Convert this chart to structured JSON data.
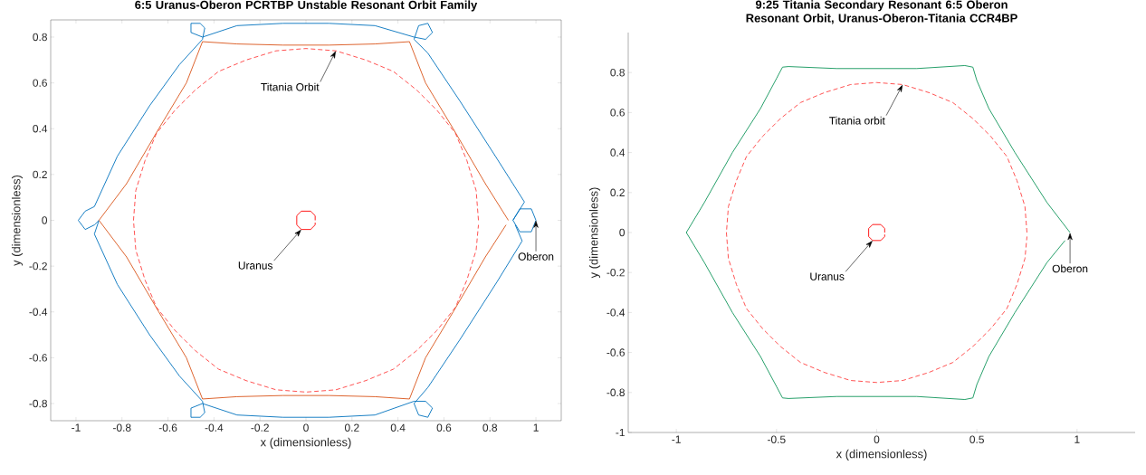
{
  "chart_data": [
    {
      "type": "line",
      "title": "6:5 Uranus-Oberon PCRTBP Unstable Resonant Orbit Family",
      "xlabel": "x (dimensionless)",
      "ylabel": "y (dimensionless)",
      "xlim": [
        -1.11,
        1.11
      ],
      "ylim": [
        -0.875,
        0.875
      ],
      "xticks": [
        -1,
        -0.8,
        -0.6,
        -0.4,
        -0.2,
        0,
        0.2,
        0.4,
        0.6,
        0.8,
        1
      ],
      "yticks": [
        -0.8,
        -0.6,
        -0.4,
        -0.2,
        0,
        0.2,
        0.4,
        0.6,
        0.8
      ],
      "series": [
        {
          "color": "#0072bd",
          "x": [
            0.9,
            0.93,
            0.98,
            1.0,
            0.98,
            0.93,
            0.9,
            0.95,
            0.83,
            0.67,
            0.53,
            0.47,
            0.49,
            0.53,
            0.55,
            0.52,
            0.47,
            0.3,
            0.1,
            -0.1,
            -0.3,
            -0.45,
            -0.5,
            -0.5,
            -0.46,
            -0.44,
            -0.45,
            -0.55,
            -0.68,
            -0.82,
            -0.92,
            -0.96,
            -0.99,
            -0.96,
            -0.92,
            -0.9,
            -0.92,
            -0.82,
            -0.68,
            -0.55,
            -0.45,
            -0.44,
            -0.46,
            -0.5,
            -0.5,
            -0.45,
            -0.3,
            -0.1,
            0.1,
            0.3,
            0.47,
            0.52,
            0.55,
            0.53,
            0.49,
            0.47,
            0.53,
            0.67,
            0.83,
            0.94,
            0.91
          ],
          "values": [
            0,
            0.05,
            0.05,
            0,
            -0.05,
            -0.05,
            0,
            0.08,
            0.27,
            0.52,
            0.73,
            0.79,
            0.85,
            0.86,
            0.82,
            0.79,
            0.8,
            0.85,
            0.86,
            0.86,
            0.85,
            0.8,
            0.82,
            0.86,
            0.86,
            0.84,
            0.79,
            0.68,
            0.5,
            0.28,
            0.06,
            0.04,
            0,
            -0.04,
            -0.02,
            0,
            -0.06,
            -0.28,
            -0.5,
            -0.68,
            -0.79,
            -0.84,
            -0.86,
            -0.86,
            -0.82,
            -0.8,
            -0.85,
            -0.86,
            -0.86,
            -0.85,
            -0.79,
            -0.79,
            -0.82,
            -0.86,
            -0.85,
            -0.8,
            -0.73,
            -0.52,
            -0.27,
            -0.09,
            -0.02
          ]
        },
        {
          "color": "#d95319",
          "x": [
            0.88,
            0.78,
            0.64,
            0.52,
            0.45,
            0.3,
            0.1,
            -0.1,
            -0.3,
            -0.45,
            -0.52,
            -0.64,
            -0.78,
            -0.9,
            -0.78,
            -0.64,
            -0.52,
            -0.45,
            -0.3,
            -0.1,
            0.1,
            0.3,
            0.45,
            0.52,
            0.64,
            0.78,
            0.87
          ],
          "values": [
            0,
            0.16,
            0.4,
            0.6,
            0.78,
            0.77,
            0.765,
            0.765,
            0.77,
            0.78,
            0.6,
            0.4,
            0.16,
            0,
            -0.16,
            -0.4,
            -0.6,
            -0.78,
            -0.77,
            -0.765,
            -0.765,
            -0.77,
            -0.78,
            -0.6,
            -0.4,
            -0.16,
            -0.02
          ]
        },
        {
          "color": "#ff4040",
          "line_style": "dashed",
          "x": [
            0.75,
            0.74,
            0.7,
            0.65,
            0.57,
            0.48,
            0.38,
            0.26,
            0.13,
            0,
            -0.13,
            -0.26,
            -0.38,
            -0.48,
            -0.57,
            -0.65,
            -0.7,
            -0.74,
            -0.75,
            -0.74,
            -0.7,
            -0.65,
            -0.57,
            -0.48,
            -0.38,
            -0.26,
            -0.13,
            0,
            0.13,
            0.26,
            0.38,
            0.48,
            0.57,
            0.65,
            0.7,
            0.74,
            0.75
          ],
          "values": [
            0,
            0.13,
            0.26,
            0.38,
            0.48,
            0.57,
            0.65,
            0.7,
            0.74,
            0.75,
            0.74,
            0.7,
            0.65,
            0.57,
            0.48,
            0.38,
            0.26,
            0.13,
            0,
            -0.13,
            -0.26,
            -0.38,
            -0.48,
            -0.57,
            -0.65,
            -0.7,
            -0.74,
            -0.75,
            -0.74,
            -0.7,
            -0.65,
            -0.57,
            -0.48,
            -0.38,
            -0.26,
            -0.13,
            -0.02
          ]
        },
        {
          "color": "#ff0000",
          "x": [
            0.04,
            0.04,
            0.02,
            0,
            -0.02,
            -0.04,
            -0.04,
            -0.04,
            -0.02,
            0,
            0.02,
            0.04,
            0.04
          ],
          "values": [
            0,
            0.02,
            0.04,
            0.04,
            0.04,
            0.02,
            0,
            -0.02,
            -0.04,
            -0.04,
            -0.04,
            -0.02,
            -0.01
          ]
        }
      ],
      "annotations": [
        {
          "text": "Titania Orbit",
          "x": 0.13,
          "y": 0.74
        },
        {
          "text": "Uranus",
          "x": -0.02,
          "y": -0.04
        },
        {
          "text": "Oberon",
          "x": 1.0,
          "y": 0
        }
      ]
    },
    {
      "type": "line",
      "title": "9:25 Titania Secondary Resonant 6:5 Oberon Resonant Orbit, Uranus-Oberon-Titania CCR4BP",
      "xlabel": "x (dimensionless)",
      "ylabel": "y (dimensionless)",
      "xlim": [
        -1.24,
        1.29
      ],
      "ylim": [
        -1,
        1
      ],
      "xticks": [
        -1,
        -0.5,
        0,
        0.5,
        1
      ],
      "yticks": [
        -1,
        -0.8,
        -0.6,
        -0.4,
        -0.2,
        0,
        0.2,
        0.4,
        0.6,
        0.8
      ],
      "series": [
        {
          "color": "#10955a",
          "x": [
            0.965,
            0.85,
            0.69,
            0.56,
            0.5,
            0.48,
            0.44,
            0.2,
            0,
            -0.2,
            -0.44,
            -0.47,
            -0.5,
            -0.58,
            -0.72,
            -0.86,
            -0.95,
            -0.86,
            -0.72,
            -0.58,
            -0.5,
            -0.47,
            -0.44,
            -0.2,
            0,
            0.2,
            0.44,
            0.48,
            0.5,
            0.56,
            0.69,
            0.85,
            0.94
          ],
          "values": [
            0,
            0.15,
            0.4,
            0.62,
            0.76,
            0.827,
            0.835,
            0.82,
            0.82,
            0.82,
            0.83,
            0.827,
            0.77,
            0.62,
            0.4,
            0.15,
            0,
            -0.15,
            -0.4,
            -0.62,
            -0.77,
            -0.827,
            -0.83,
            -0.82,
            -0.82,
            -0.82,
            -0.835,
            -0.827,
            -0.76,
            -0.62,
            -0.4,
            -0.15,
            -0.04
          ]
        },
        {
          "color": "#ff4040",
          "line_style": "dashed",
          "x": [
            0.75,
            0.74,
            0.7,
            0.65,
            0.57,
            0.48,
            0.38,
            0.26,
            0.13,
            0,
            -0.13,
            -0.26,
            -0.38,
            -0.48,
            -0.57,
            -0.65,
            -0.7,
            -0.74,
            -0.75,
            -0.74,
            -0.7,
            -0.65,
            -0.57,
            -0.48,
            -0.38,
            -0.26,
            -0.13,
            0,
            0.13,
            0.26,
            0.38,
            0.48,
            0.57,
            0.65,
            0.7,
            0.74,
            0.75
          ],
          "values": [
            0,
            0.13,
            0.26,
            0.38,
            0.48,
            0.57,
            0.65,
            0.7,
            0.74,
            0.75,
            0.74,
            0.7,
            0.65,
            0.57,
            0.48,
            0.38,
            0.26,
            0.13,
            0,
            -0.13,
            -0.26,
            -0.38,
            -0.48,
            -0.57,
            -0.65,
            -0.7,
            -0.74,
            -0.75,
            -0.74,
            -0.7,
            -0.65,
            -0.57,
            -0.48,
            -0.38,
            -0.26,
            -0.13,
            -0.02
          ]
        },
        {
          "color": "#ff0000",
          "x": [
            0.04,
            0.04,
            0.02,
            0,
            -0.02,
            -0.04,
            -0.04,
            -0.04,
            -0.02,
            0,
            0.02,
            0.04,
            0.04
          ],
          "values": [
            0,
            0.02,
            0.04,
            0.04,
            0.04,
            0.02,
            0,
            -0.02,
            -0.04,
            -0.04,
            -0.04,
            -0.02,
            -0.01
          ]
        }
      ],
      "annotations": [
        {
          "text": "Titania orbit",
          "x": 0.13,
          "y": 0.74
        },
        {
          "text": "Uranus",
          "x": -0.02,
          "y": -0.04
        },
        {
          "text": "Oberon",
          "x": 0.965,
          "y": 0
        }
      ]
    }
  ]
}
